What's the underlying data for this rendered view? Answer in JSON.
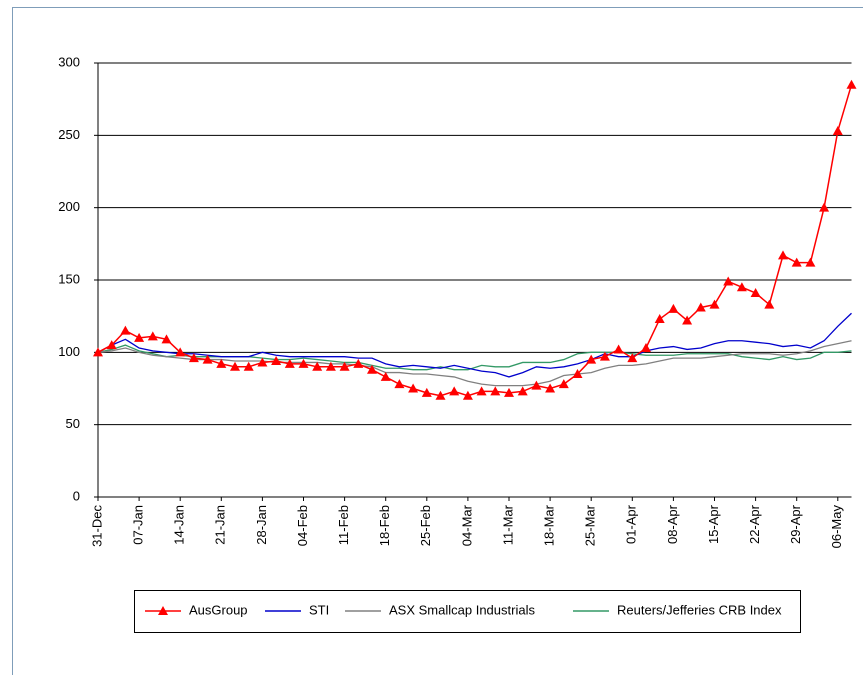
{
  "chart_data": {
    "type": "line",
    "categories": [
      "31-Dec",
      null,
      null,
      "07-Jan",
      null,
      null,
      "14-Jan",
      null,
      null,
      "21-Jan",
      null,
      null,
      "28-Jan",
      null,
      null,
      "04-Feb",
      null,
      null,
      "11-Feb",
      null,
      null,
      "18-Feb",
      null,
      null,
      "25-Feb",
      null,
      null,
      "04-Mar",
      null,
      null,
      "11-Mar",
      null,
      null,
      "18-Mar",
      null,
      null,
      "25-Mar",
      null,
      null,
      "01-Apr",
      null,
      null,
      "08-Apr",
      null,
      null,
      "15-Apr",
      null,
      null,
      "22-Apr",
      null,
      null,
      "29-Apr",
      null,
      null,
      "06-May",
      null
    ],
    "series": [
      {
        "name": "AusGroup",
        "color": "#ff0000",
        "marker": "triangle",
        "values": [
          100,
          105,
          115,
          110,
          111,
          109,
          100,
          96,
          95,
          92,
          90,
          90,
          93,
          94,
          92,
          92,
          90,
          90,
          90,
          92,
          88,
          83,
          78,
          75,
          72,
          70,
          73,
          70,
          73,
          73,
          72,
          73,
          77,
          75,
          78,
          85,
          95,
          97,
          102,
          96,
          103,
          123,
          130,
          122,
          131,
          133,
          149,
          145,
          141,
          133,
          167,
          162,
          162,
          200,
          253,
          285
        ]
      },
      {
        "name": "STI",
        "color": "#0000cc",
        "values": [
          100,
          105,
          109,
          103,
          101,
          100,
          99,
          99,
          98,
          97,
          97,
          97,
          100,
          98,
          97,
          97,
          97,
          97,
          97,
          96,
          96,
          92,
          90,
          91,
          90,
          89,
          91,
          89,
          87,
          86,
          83,
          86,
          90,
          89,
          90,
          92,
          95,
          99,
          97,
          97,
          101,
          103,
          104,
          102,
          103,
          106,
          108,
          108,
          107,
          106,
          104,
          105,
          103,
          108,
          118,
          127
        ]
      },
      {
        "name": "ASX Smallcap Industrials",
        "color": "#808080",
        "values": [
          100,
          101,
          103,
          100,
          98,
          97,
          96,
          95,
          95,
          95,
          94,
          94,
          94,
          93,
          93,
          93,
          93,
          92,
          92,
          91,
          90,
          86,
          86,
          85,
          85,
          84,
          83,
          80,
          78,
          77,
          77,
          77,
          78,
          80,
          84,
          85,
          86,
          89,
          91,
          91,
          92,
          94,
          96,
          96,
          96,
          97,
          98,
          99,
          99,
          99,
          98,
          99,
          101,
          104,
          106,
          108
        ]
      },
      {
        "name": "Reuters/Jefferies CRB Index",
        "color": "#339966",
        "values": [
          100,
          102,
          105,
          101,
          99,
          97,
          98,
          97,
          97,
          97,
          97,
          97,
          96,
          95,
          95,
          96,
          95,
          94,
          93,
          93,
          91,
          89,
          89,
          88,
          88,
          90,
          88,
          88,
          91,
          90,
          90,
          93,
          93,
          93,
          95,
          99,
          100,
          100,
          100,
          99,
          98,
          98,
          98,
          99,
          99,
          99,
          99,
          97,
          96,
          95,
          97,
          95,
          96,
          100,
          100,
          101
        ]
      }
    ],
    "ylim": [
      0,
      300
    ],
    "yticks": [
      0,
      50,
      100,
      150,
      200,
      250,
      300
    ],
    "grid": true,
    "legend": "bottom"
  }
}
